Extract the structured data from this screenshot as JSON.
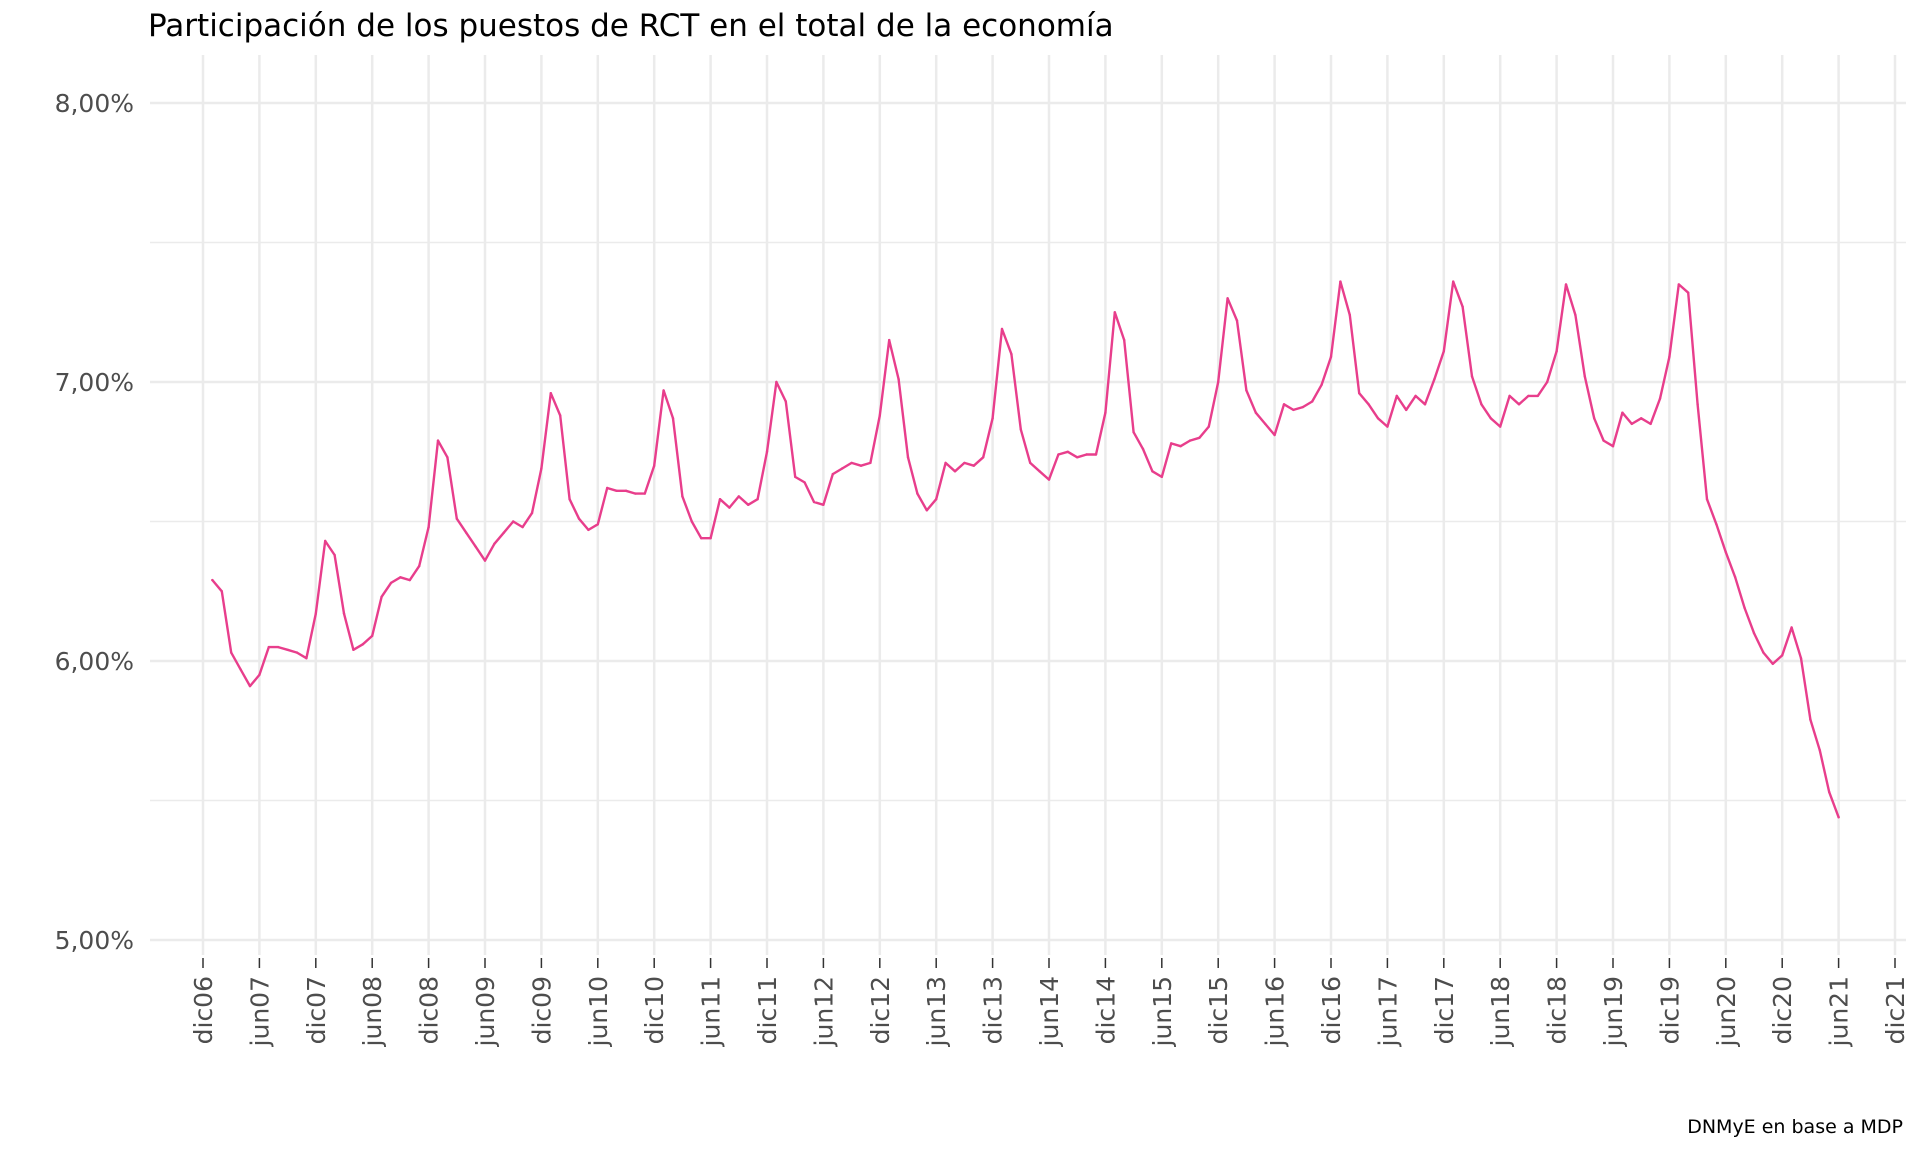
{
  "chart_data": {
    "type": "line",
    "title": "Participación de los puestos de RCT en el total de la economía",
    "caption": "DNMyE en base a MDP",
    "xlabel": "",
    "ylabel": "",
    "ylim": [
      4.85,
      8.15
    ],
    "y_ticks": [
      {
        "value": 5,
        "label": "5,00%"
      },
      {
        "value": 6,
        "label": "6,00%"
      },
      {
        "value": 7,
        "label": "7,00%"
      },
      {
        "value": 8,
        "label": "8,00%"
      }
    ],
    "x_ticks": [
      "dic06",
      "jun07",
      "dic07",
      "jun08",
      "dic08",
      "jun09",
      "dic09",
      "jun10",
      "dic10",
      "jun11",
      "dic11",
      "jun12",
      "dic12",
      "jun13",
      "dic13",
      "jun14",
      "dic14",
      "jun15",
      "dic15",
      "jun16",
      "dic16",
      "jun17",
      "dic17",
      "jun18",
      "dic18",
      "jun19",
      "dic19",
      "jun20",
      "dic20",
      "jun21",
      "dic21"
    ],
    "grid": true,
    "series": [
      {
        "color": "#e83e8c",
        "start": "2007-01",
        "values": [
          6.29,
          6.25,
          6.03,
          5.97,
          5.91,
          5.95,
          6.05,
          6.05,
          6.04,
          6.03,
          6.01,
          6.17,
          6.43,
          6.38,
          6.17,
          6.04,
          6.06,
          6.09,
          6.23,
          6.28,
          6.3,
          6.29,
          6.34,
          6.48,
          6.79,
          6.73,
          6.51,
          6.46,
          6.41,
          6.36,
          6.42,
          6.46,
          6.5,
          6.48,
          6.53,
          6.69,
          6.96,
          6.88,
          6.58,
          6.51,
          6.47,
          6.49,
          6.62,
          6.61,
          6.61,
          6.6,
          6.6,
          6.7,
          6.97,
          6.87,
          6.59,
          6.5,
          6.44,
          6.44,
          6.58,
          6.55,
          6.59,
          6.56,
          6.58,
          6.75,
          7.0,
          6.93,
          6.66,
          6.64,
          6.57,
          6.56,
          6.67,
          6.69,
          6.71,
          6.7,
          6.71,
          6.88,
          7.15,
          7.01,
          6.73,
          6.6,
          6.54,
          6.58,
          6.71,
          6.68,
          6.71,
          6.7,
          6.73,
          6.87,
          7.19,
          7.1,
          6.83,
          6.71,
          6.68,
          6.65,
          6.74,
          6.75,
          6.73,
          6.74,
          6.74,
          6.89,
          7.25,
          7.15,
          6.82,
          6.76,
          6.68,
          6.66,
          6.78,
          6.77,
          6.79,
          6.8,
          6.84,
          7.0,
          7.3,
          7.22,
          6.97,
          6.89,
          6.85,
          6.81,
          6.92,
          6.9,
          6.91,
          6.93,
          6.99,
          7.09,
          7.36,
          7.24,
          6.96,
          6.92,
          6.87,
          6.84,
          6.95,
          6.9,
          6.95,
          6.92,
          7.01,
          7.11,
          7.36,
          7.27,
          7.02,
          6.92,
          6.87,
          6.84,
          6.95,
          6.92,
          6.95,
          6.95,
          7.0,
          7.11,
          7.35,
          7.24,
          7.02,
          6.87,
          6.79,
          6.77,
          6.89,
          6.85,
          6.87,
          6.85,
          6.94,
          7.09,
          7.35,
          7.32,
          6.92,
          6.58,
          6.49,
          6.39,
          6.3,
          6.19,
          6.1,
          6.03,
          5.99,
          6.02,
          6.12,
          6.01,
          5.79,
          5.68,
          5.53,
          5.44
        ]
      }
    ]
  }
}
